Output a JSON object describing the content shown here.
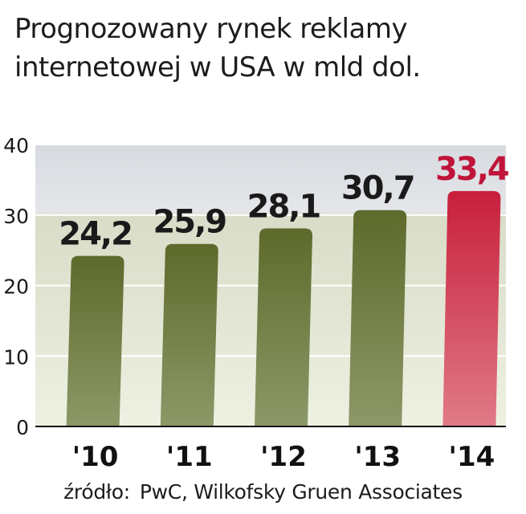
{
  "title_lines": [
    "Prognozowany rynek reklamy",
    "internetowej w USA  w mld dol."
  ],
  "source": {
    "label": "źródło:",
    "text": "PwC, Wilkofsky Gruen Associates"
  },
  "chart_data": {
    "type": "bar",
    "categories": [
      "'10",
      "'11",
      "'12",
      "'13",
      "'14"
    ],
    "values": [
      24.2,
      25.9,
      28.1,
      30.7,
      33.4
    ],
    "value_labels": [
      "24,2",
      "25,9",
      "28,1",
      "30,7",
      "33,4"
    ],
    "highlight_index": 4,
    "ylim": [
      0,
      40
    ],
    "yticks": [
      0,
      10,
      20,
      30,
      40
    ],
    "grid": true,
    "colors": {
      "bar": "#5d6a2b",
      "bar_light": "#8c9968",
      "highlight": "#c81f3c",
      "highlight_light": "#e07a87",
      "highlight_label": "#c0143a",
      "label": "#1a1a1a"
    }
  }
}
